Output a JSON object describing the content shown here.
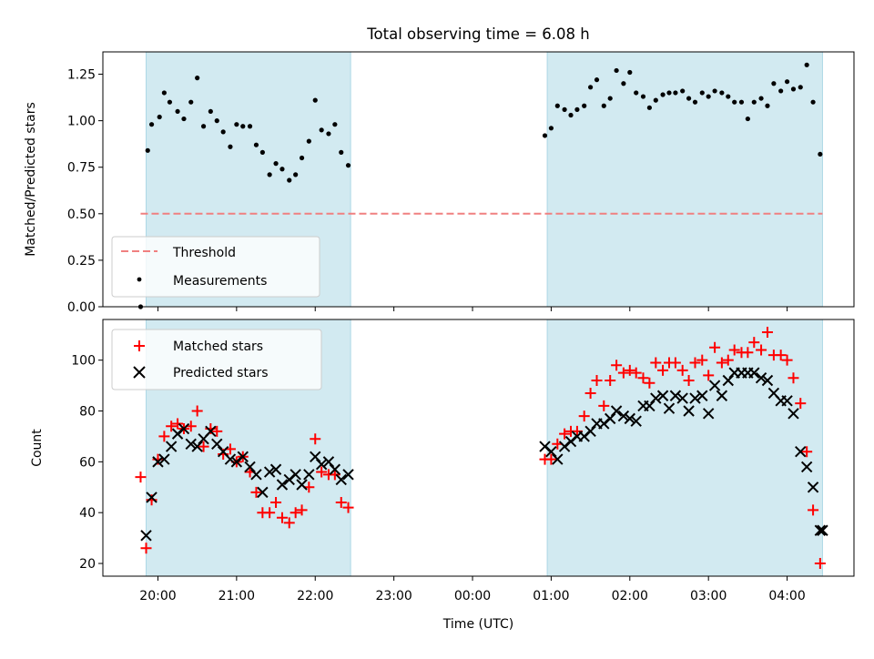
{
  "title": "Total observing time = 6.08 h",
  "xlabel": "Time (UTC)",
  "x_ticks": [
    "20:00",
    "21:00",
    "22:00",
    "23:00",
    "00:00",
    "01:00",
    "02:00",
    "03:00",
    "04:00"
  ],
  "colors": {
    "band": "#add8e6",
    "threshold": "#f08080",
    "matched": "#ff0000",
    "predicted": "#000000",
    "points": "#000000"
  },
  "chart_data": [
    {
      "type": "scatter",
      "panel": "top",
      "ylabel": "Matched/Predicted stars",
      "ylim": [
        0,
        1.37
      ],
      "yticks": [
        "0.00",
        "0.25",
        "0.50",
        "0.75",
        "1.00",
        "1.25"
      ],
      "xlim": [
        19.3,
        28.85
      ],
      "shaded_intervals": [
        [
          19.85,
          22.45
        ],
        [
          24.95,
          28.45
        ]
      ],
      "threshold": {
        "name": "Threshold",
        "y": 0.5,
        "x_range": [
          19.78,
          28.45
        ],
        "style": "dashed"
      },
      "legend": {
        "placement": "lower-left",
        "entries": [
          "Threshold",
          "Measurements"
        ]
      },
      "series": [
        {
          "name": "Measurements",
          "x": [
            19.78,
            19.87,
            19.92,
            20.02,
            20.08,
            20.15,
            20.25,
            20.33,
            20.42,
            20.5,
            20.58,
            20.67,
            20.75,
            20.83,
            20.92,
            21.0,
            21.08,
            21.17,
            21.25,
            21.33,
            21.42,
            21.5,
            21.58,
            21.67,
            21.75,
            21.83,
            21.92,
            22.0,
            22.08,
            22.17,
            22.25,
            22.33,
            22.42,
            24.92,
            25.0,
            25.08,
            25.17,
            25.25,
            25.33,
            25.42,
            25.5,
            25.58,
            25.67,
            25.75,
            25.83,
            25.92,
            26.0,
            26.08,
            26.17,
            26.25,
            26.33,
            26.42,
            26.5,
            26.58,
            26.67,
            26.75,
            26.83,
            26.92,
            27.0,
            27.08,
            27.17,
            27.25,
            27.33,
            27.42,
            27.5,
            27.58,
            27.67,
            27.75,
            27.83,
            27.92,
            28.0,
            28.08,
            28.17,
            28.25,
            28.33,
            28.42
          ],
          "y": [
            0.0,
            0.84,
            0.98,
            1.02,
            1.15,
            1.1,
            1.05,
            1.01,
            1.1,
            1.23,
            0.97,
            1.05,
            1.0,
            0.94,
            0.86,
            0.98,
            0.97,
            0.97,
            0.87,
            0.83,
            0.71,
            0.77,
            0.74,
            0.68,
            0.71,
            0.8,
            0.89,
            1.11,
            0.95,
            0.93,
            0.98,
            0.83,
            0.76,
            0.92,
            0.96,
            1.08,
            1.06,
            1.03,
            1.06,
            1.08,
            1.18,
            1.22,
            1.08,
            1.12,
            1.27,
            1.2,
            1.26,
            1.15,
            1.13,
            1.07,
            1.11,
            1.14,
            1.15,
            1.15,
            1.16,
            1.12,
            1.1,
            1.15,
            1.13,
            1.16,
            1.15,
            1.13,
            1.1,
            1.1,
            1.01,
            1.1,
            1.12,
            1.08,
            1.2,
            1.16,
            1.21,
            1.17,
            1.18,
            1.3,
            1.1,
            0.82
          ]
        }
      ]
    },
    {
      "type": "scatter",
      "panel": "bottom",
      "ylabel": "Count",
      "ylim": [
        15,
        116
      ],
      "yticks": [
        "20",
        "40",
        "60",
        "80",
        "100"
      ],
      "xlim": [
        19.3,
        28.85
      ],
      "shaded_intervals": [
        [
          19.85,
          22.45
        ],
        [
          24.95,
          28.45
        ]
      ],
      "legend": {
        "placement": "upper-left",
        "entries": [
          "Matched stars",
          "Predicted stars"
        ]
      },
      "series": [
        {
          "name": "Matched stars",
          "marker": "+",
          "x": [
            19.78,
            19.85,
            19.92,
            20.0,
            20.08,
            20.17,
            20.25,
            20.33,
            20.42,
            20.5,
            20.58,
            20.67,
            20.75,
            20.83,
            20.92,
            21.0,
            21.08,
            21.17,
            21.25,
            21.33,
            21.42,
            21.5,
            21.58,
            21.67,
            21.75,
            21.83,
            21.92,
            22.0,
            22.08,
            22.17,
            22.25,
            22.33,
            22.42,
            24.92,
            25.0,
            25.08,
            25.17,
            25.25,
            25.33,
            25.42,
            25.5,
            25.58,
            25.67,
            25.75,
            25.83,
            25.92,
            26.0,
            26.08,
            26.17,
            26.25,
            26.33,
            26.42,
            26.5,
            26.58,
            26.67,
            26.75,
            26.83,
            26.92,
            27.0,
            27.08,
            27.17,
            27.25,
            27.33,
            27.42,
            27.5,
            27.58,
            27.67,
            27.75,
            27.83,
            27.92,
            28.0,
            28.08,
            28.17,
            28.25,
            28.33,
            28.42
          ],
          "y": [
            54,
            26,
            45,
            61,
            70,
            74,
            75,
            73,
            74,
            80,
            66,
            73,
            72,
            63,
            65,
            60,
            62,
            56,
            48,
            40,
            40,
            44,
            38,
            36,
            40,
            41,
            50,
            69,
            56,
            55,
            55,
            44,
            42,
            61,
            61,
            67,
            71,
            72,
            72,
            78,
            87,
            92,
            82,
            92,
            98,
            95,
            96,
            95,
            93,
            91,
            99,
            96,
            99,
            99,
            96,
            92,
            99,
            100,
            94,
            105,
            99,
            100,
            104,
            103,
            103,
            107,
            104,
            111,
            102,
            102,
            100,
            93,
            83,
            64,
            41,
            20
          ]
        },
        {
          "name": "Predicted stars",
          "marker": "x",
          "x": [
            19.85,
            19.92,
            20.0,
            20.08,
            20.17,
            20.25,
            20.33,
            20.42,
            20.5,
            20.58,
            20.67,
            20.75,
            20.83,
            20.92,
            21.0,
            21.08,
            21.17,
            21.25,
            21.33,
            21.42,
            21.5,
            21.58,
            21.67,
            21.75,
            21.83,
            21.92,
            22.0,
            22.08,
            22.17,
            22.25,
            22.33,
            22.42,
            24.92,
            25.0,
            25.08,
            25.17,
            25.25,
            25.33,
            25.42,
            25.5,
            25.58,
            25.67,
            25.75,
            25.83,
            25.92,
            26.0,
            26.08,
            26.17,
            26.25,
            26.33,
            26.42,
            26.5,
            26.58,
            26.67,
            26.75,
            26.83,
            26.92,
            27.0,
            27.08,
            27.17,
            27.25,
            27.33,
            27.42,
            27.5,
            27.58,
            27.67,
            27.75,
            27.83,
            27.92,
            28.0,
            28.08,
            28.17,
            28.25,
            28.33,
            28.42,
            28.45
          ],
          "y": [
            31,
            46,
            60,
            61,
            66,
            71,
            73,
            67,
            66,
            69,
            72,
            67,
            64,
            61,
            60,
            62,
            58,
            55,
            48,
            56,
            57,
            51,
            53,
            55,
            51,
            55,
            62,
            59,
            60,
            57,
            53,
            55,
            66,
            64,
            61,
            66,
            68,
            70,
            70,
            72,
            75,
            75,
            77,
            80,
            78,
            77,
            76,
            82,
            82,
            85,
            86,
            81,
            86,
            85,
            80,
            85,
            86,
            79,
            90,
            86,
            92,
            95,
            95,
            95,
            95,
            93,
            92,
            87,
            84,
            84,
            79,
            64,
            58,
            50,
            33,
            33
          ]
        }
      ]
    }
  ]
}
